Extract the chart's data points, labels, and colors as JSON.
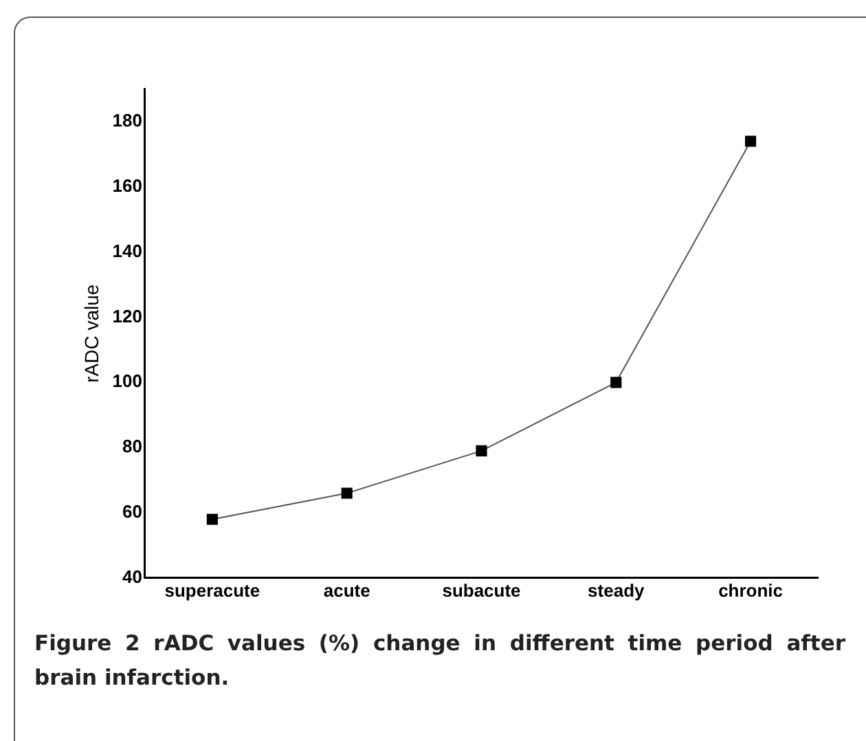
{
  "chart_data": {
    "type": "line",
    "title": "Figure 2 rADC values (%) change in different time period after brain infarction.",
    "ylabel": "rADC value",
    "categories": [
      "superacute",
      "acute",
      "subacute",
      "steady",
      "chronic"
    ],
    "series": [
      {
        "color": "#000000",
        "values": [
          58,
          66,
          79,
          100,
          174
        ]
      }
    ],
    "ylim": [
      40,
      190
    ],
    "yticks": [
      40,
      60,
      80,
      100,
      120,
      140,
      160,
      180
    ],
    "grid": false,
    "legend": false,
    "marker": "square",
    "line_style": "solid"
  }
}
